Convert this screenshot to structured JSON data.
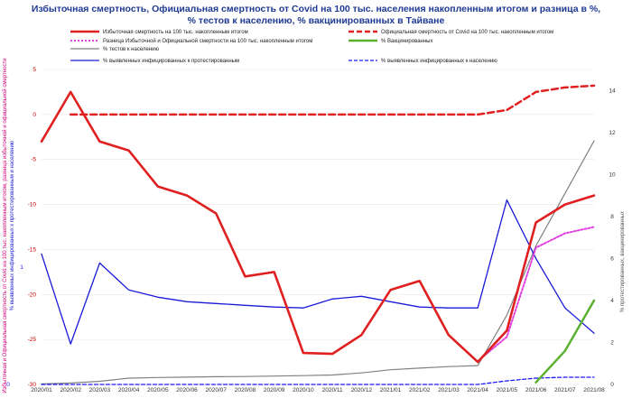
{
  "colors": {
    "title": "#1f3a93",
    "red": "#e02020",
    "magenta": "#e040e0",
    "gray": "#808080",
    "green": "#5cb030",
    "blue": "#1a1ad8",
    "blue_dash": "#1a1aff",
    "grid": "#e8e8e8"
  },
  "chart_data": {
    "type": "line",
    "title_lines": [
      "Избыточная смертность, Официальная смертность от Covid на 100 тыс. населения накопленным итогом и разница в %,",
      "% тестов к населению, % вакцинированных в Тайване"
    ],
    "categories": [
      "2020/01",
      "2020/02",
      "2020/03",
      "2020/04",
      "2020/05",
      "2020/06",
      "2020/07",
      "2020/08",
      "2020/09",
      "2020/10",
      "2020/11",
      "2020/12",
      "2021/01",
      "2021/02",
      "2021/03",
      "2021/04",
      "2021/05",
      "2021/06",
      "2021/07",
      "2021/08"
    ],
    "left_axis": {
      "ticks": [
        5,
        0,
        -5,
        -10,
        -15,
        -20,
        -25,
        -30
      ],
      "tick_labels": [
        "5",
        "0",
        "-5",
        "-10",
        "-15",
        "-20",
        "-25",
        "-30"
      ],
      "ylim": [
        -30,
        5
      ],
      "label_lines": [
        "Избыточная и Официальная смертность от Covid на 100 тыс. накопленным итогом, разница избыточной и официальной смертности",
        "% выявленных инфицированных к протестированным и населению"
      ]
    },
    "blue_axis": {
      "ticks": [
        "1",
        "0"
      ]
    },
    "right_axis": {
      "ticks": [
        0,
        2,
        4,
        6,
        8,
        10,
        12,
        14
      ],
      "tick_labels": [
        "0",
        "2",
        "4",
        "6",
        "8",
        "10",
        "12",
        "14"
      ],
      "ylim": [
        0,
        15
      ],
      "label": "% протестированных, вакцинированных"
    },
    "legend": {
      "position": "top",
      "entries": [
        {
          "label": "Избыточная смертность на 100 тыс. накопленным итогом",
          "color": "#e02020",
          "style": "solid-thick"
        },
        {
          "label": "Официальная смертность от Covid на 100 тыс. накопленным итогом",
          "color": "#e02020",
          "style": "dashed-thick"
        },
        {
          "label": "Разница Избыточной и Официальной смертности на 100 тыс. накопленным итогом",
          "color": "#e040e0",
          "style": "dotted"
        },
        {
          "label": "% Вакцинированных",
          "color": "#5cb030",
          "style": "solid-thick"
        },
        {
          "label": "% тестов к населению",
          "color": "#808080",
          "style": "solid"
        },
        {
          "label": "% выявленных инфицированных к протестированным",
          "color": "#1a1ad8",
          "style": "solid"
        },
        {
          "label": "% выявленных инфицированных к населению",
          "color": "#1a1aff",
          "style": "dashed"
        }
      ]
    },
    "series": [
      {
        "id": "excess",
        "axis": "left",
        "values": [
          -3,
          2.5,
          -3,
          -4,
          -8,
          -9,
          -11,
          -18,
          -17.5,
          -26.5,
          -26.6,
          -24.5,
          -19.5,
          -18.5,
          -24.5,
          -27.5,
          -24,
          -12,
          -10,
          -9
        ]
      },
      {
        "id": "official",
        "axis": "left",
        "values": [
          null,
          0,
          0,
          0,
          0,
          0,
          0,
          0,
          0,
          0,
          0,
          0,
          0,
          0,
          0,
          0,
          0.5,
          2.5,
          3,
          3.2
        ]
      },
      {
        "id": "difference",
        "axis": "left",
        "values": [
          null,
          null,
          null,
          null,
          null,
          null,
          null,
          null,
          null,
          null,
          null,
          null,
          null,
          null,
          null,
          -27.4,
          -24.7,
          -14.8,
          -13.2,
          -12.5
        ]
      },
      {
        "id": "vaccinated",
        "axis": "right",
        "values": [
          null,
          null,
          null,
          null,
          null,
          null,
          null,
          null,
          null,
          null,
          null,
          null,
          null,
          null,
          null,
          null,
          null,
          0.1,
          1.6,
          4
        ]
      },
      {
        "id": "tests",
        "axis": "right",
        "values": [
          0.03,
          0.07,
          0.15,
          0.3,
          0.33,
          0.35,
          0.37,
          0.38,
          0.4,
          0.42,
          0.45,
          0.55,
          0.7,
          0.78,
          0.85,
          0.9,
          3.3,
          6.6,
          9.1,
          11.6
        ]
      },
      {
        "id": "pos_tested",
        "axis": "left",
        "values": [
          -15.5,
          -25.5,
          -16.5,
          -19.5,
          -20.3,
          -20.8,
          -21.0,
          -21.2,
          -21.4,
          -21.5,
          -20.5,
          -20.2,
          -20.8,
          -21.4,
          -21.5,
          -21.5,
          -9.5,
          -16.0,
          -21.5,
          -24.3
        ]
      },
      {
        "id": "pos_population",
        "axis": "left",
        "values": [
          -30,
          -30,
          -30,
          -30,
          -30,
          -30,
          -30,
          -30,
          -30,
          -30,
          -30,
          -30,
          -30,
          -30,
          -30,
          -30,
          -29.6,
          -29.3,
          -29.2,
          -29.2
        ]
      }
    ]
  }
}
